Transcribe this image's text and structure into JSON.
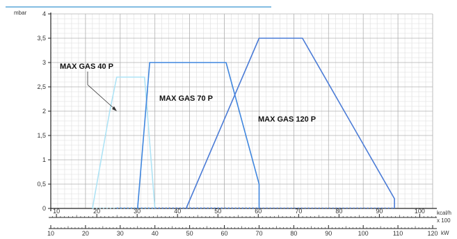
{
  "chart_data": {
    "type": "line",
    "title": "",
    "ylabel": "mbar",
    "ylim": [
      0,
      4
    ],
    "yticks": [
      0,
      0.5,
      1,
      1.5,
      2,
      2.5,
      3,
      3.5,
      4
    ],
    "ytick_labels": [
      "0",
      "0,5",
      "1",
      "1,5",
      "2",
      "2,5",
      "3",
      "3,5",
      "4"
    ],
    "x_kcal": {
      "label": "kcal/h x 100",
      "range": [
        10,
        100
      ],
      "ticks": [
        10,
        20,
        30,
        40,
        50,
        60,
        70,
        80,
        90,
        100
      ]
    },
    "x_kw": {
      "label": "kW",
      "range": [
        10,
        120
      ],
      "ticks": [
        10,
        20,
        30,
        40,
        50,
        60,
        70,
        80,
        90,
        100,
        110,
        120
      ]
    },
    "grid": true,
    "series": [
      {
        "name": "MAX GAS 40 P",
        "color": "#aee3f5",
        "x_kw": [
          22,
          27,
          29,
          37,
          40
        ],
        "y": [
          0,
          2,
          2.7,
          2.7,
          0
        ],
        "dotted_base_kw": [
          22,
          40
        ]
      },
      {
        "name": "MAX GAS 70 P",
        "color": "#3f86de",
        "x_kw": [
          35,
          38.5,
          60.5,
          70,
          70
        ],
        "y": [
          0,
          3,
          3,
          0.5,
          0
        ],
        "dotted_base_kw": [
          29,
          70
        ]
      },
      {
        "name": "MAX GAS 120 P",
        "color": "#4a7bd6",
        "x_kw": [
          49,
          70,
          82.5,
          109,
          109
        ],
        "y": [
          0,
          3.5,
          3.5,
          0.2,
          0
        ],
        "dotted_base_kw": [
          40,
          109
        ]
      }
    ]
  }
}
